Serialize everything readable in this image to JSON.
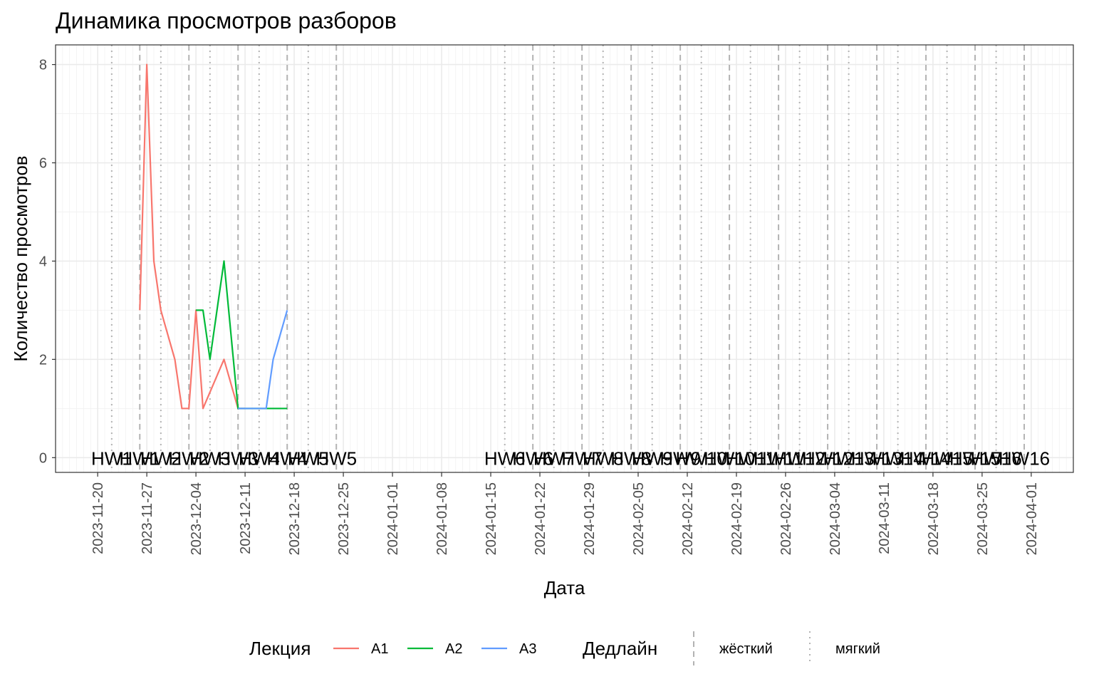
{
  "chart_data": {
    "type": "line",
    "title": "Динамика просмотров разборов",
    "xlabel": "Дата",
    "ylabel": "Количество просмотров",
    "x_range": [
      "2023-11-14",
      "2024-04-07"
    ],
    "ylim": [
      -0.3,
      8.4
    ],
    "y_ticks": [
      0,
      2,
      4,
      6,
      8
    ],
    "x_ticks": [
      "2023-11-20",
      "2023-11-27",
      "2023-12-04",
      "2023-12-11",
      "2023-12-18",
      "2023-12-25",
      "2024-01-01",
      "2024-01-08",
      "2024-01-15",
      "2024-01-22",
      "2024-01-29",
      "2024-02-05",
      "2024-02-12",
      "2024-02-19",
      "2024-02-26",
      "2024-03-04",
      "2024-03-11",
      "2024-03-18",
      "2024-03-25",
      "2024-04-01"
    ],
    "grid": true,
    "series": [
      {
        "name": "A1",
        "color": "#F8766D",
        "points": [
          [
            "2023-11-26",
            3
          ],
          [
            "2023-11-27",
            8
          ],
          [
            "2023-11-28",
            4
          ],
          [
            "2023-11-29",
            3
          ],
          [
            "2023-12-01",
            2
          ],
          [
            "2023-12-02",
            1
          ],
          [
            "2023-12-03",
            1
          ],
          [
            "2023-12-04",
            3
          ],
          [
            "2023-12-05",
            1
          ],
          [
            "2023-12-08",
            2
          ],
          [
            "2023-12-10",
            1
          ],
          [
            "2023-12-11",
            1
          ]
        ]
      },
      {
        "name": "A2",
        "color": "#00BA38",
        "points": [
          [
            "2023-12-04",
            3
          ],
          [
            "2023-12-05",
            3
          ],
          [
            "2023-12-06",
            2
          ],
          [
            "2023-12-08",
            4
          ],
          [
            "2023-12-10",
            1
          ],
          [
            "2023-12-11",
            1
          ],
          [
            "2023-12-14",
            1
          ],
          [
            "2023-12-17",
            1
          ]
        ]
      },
      {
        "name": "A3",
        "color": "#619CFF",
        "points": [
          [
            "2023-12-10",
            1
          ],
          [
            "2023-12-14",
            1
          ],
          [
            "2023-12-15",
            2
          ],
          [
            "2023-12-17",
            3
          ]
        ]
      }
    ],
    "deadlines": [
      {
        "date": "2023-11-22",
        "type": "мягкий",
        "label": "HW1"
      },
      {
        "date": "2023-11-26",
        "type": "жёсткий",
        "label": "HW1"
      },
      {
        "date": "2023-11-29",
        "type": "мягкий",
        "label": "HW2"
      },
      {
        "date": "2023-12-03",
        "type": "жёсткий",
        "label": "HW2"
      },
      {
        "date": "2023-12-06",
        "type": "мягкий",
        "label": "HW3"
      },
      {
        "date": "2023-12-10",
        "type": "жёсткий",
        "label": "HW3"
      },
      {
        "date": "2023-12-13",
        "type": "мягкий",
        "label": "HW4"
      },
      {
        "date": "2023-12-17",
        "type": "жёсткий",
        "label": "HW4"
      },
      {
        "date": "2023-12-20",
        "type": "мягкий",
        "label": "HW5"
      },
      {
        "date": "2023-12-24",
        "type": "жёсткий",
        "label": "HW5"
      },
      {
        "date": "2024-01-17",
        "type": "мягкий",
        "label": "HW6"
      },
      {
        "date": "2024-01-21",
        "type": "жёсткий",
        "label": "HW6"
      },
      {
        "date": "2024-01-24",
        "type": "мягкий",
        "label": "HW7"
      },
      {
        "date": "2024-01-28",
        "type": "жёсткий",
        "label": "HW7"
      },
      {
        "date": "2024-01-31",
        "type": "мягкий",
        "label": "HW8"
      },
      {
        "date": "2024-02-04",
        "type": "жёсткий",
        "label": "HW8"
      },
      {
        "date": "2024-02-07",
        "type": "мягкий",
        "label": "HW9"
      },
      {
        "date": "2024-02-11",
        "type": "жёсткий",
        "label": "HW9"
      },
      {
        "date": "2024-02-14",
        "type": "мягкий",
        "label": "HW10"
      },
      {
        "date": "2024-02-18",
        "type": "жёсткий",
        "label": "HW10"
      },
      {
        "date": "2024-02-21",
        "type": "мягкий",
        "label": "HW11"
      },
      {
        "date": "2024-02-25",
        "type": "жёсткий",
        "label": "HW11"
      },
      {
        "date": "2024-02-28",
        "type": "мягкий",
        "label": "HW12"
      },
      {
        "date": "2024-03-03",
        "type": "жёсткий",
        "label": "HW12"
      },
      {
        "date": "2024-03-06",
        "type": "мягкий",
        "label": "HW13"
      },
      {
        "date": "2024-03-10",
        "type": "жёсткий",
        "label": "HW13"
      },
      {
        "date": "2024-03-13",
        "type": "мягкий",
        "label": "HW14"
      },
      {
        "date": "2024-03-17",
        "type": "жёсткий",
        "label": "HW14"
      },
      {
        "date": "2024-03-20",
        "type": "мягкий",
        "label": "HW15"
      },
      {
        "date": "2024-03-24",
        "type": "жёсткий",
        "label": "HW15"
      },
      {
        "date": "2024-03-27",
        "type": "мягкий",
        "label": "HW16"
      },
      {
        "date": "2024-03-31",
        "type": "жёсткий",
        "label": "HW16"
      }
    ],
    "deadline_label_y": 0,
    "legend": {
      "position": "bottom",
      "color_title": "Лекция",
      "linetype_title": "Дедлайн",
      "linetypes": [
        {
          "name": "жёсткий",
          "style": "dashed"
        },
        {
          "name": "мягкий",
          "style": "dotted"
        }
      ]
    }
  }
}
